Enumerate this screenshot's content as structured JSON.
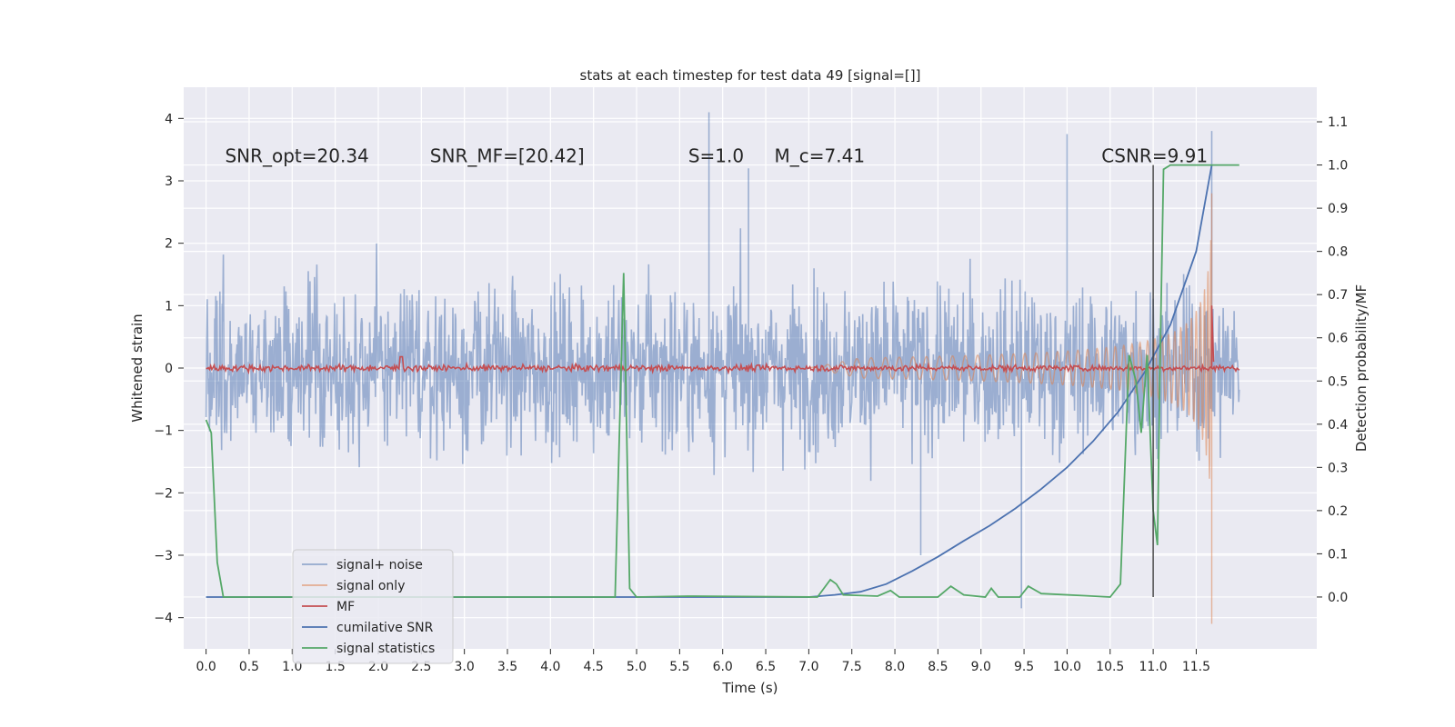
{
  "chart_data": {
    "type": "line",
    "title": "stats at each timestep for test data 49 [signal=[]]",
    "xlabel": "Time (s)",
    "ylabel": "Whitened strain",
    "y2label": "Detection probability/MF",
    "xlim": [
      -0.26,
      12.9
    ],
    "ylim": [
      -4.5,
      4.5
    ],
    "y2lim": [
      -0.12,
      1.18
    ],
    "x_ticks": [
      "0.0",
      "0.5",
      "1.0",
      "1.5",
      "2.0",
      "2.5",
      "3.0",
      "3.5",
      "4.0",
      "4.5",
      "5.0",
      "5.5",
      "6.0",
      "6.5",
      "7.0",
      "7.5",
      "8.0",
      "8.5",
      "9.0",
      "9.5",
      "10.0",
      "10.5",
      "11.0",
      "11.5"
    ],
    "y_ticks": [
      "4",
      "3",
      "2",
      "1",
      "0",
      "−1",
      "−2",
      "−3",
      "−4"
    ],
    "y2_ticks": [
      "1.1",
      "1.0",
      "0.9",
      "0.8",
      "0.7",
      "0.6",
      "0.5",
      "0.4",
      "0.3",
      "0.2",
      "0.1",
      "0.0"
    ],
    "grid": true,
    "legend_position": "lower-left",
    "annotations": [
      {
        "text": "SNR_opt=20.34",
        "x": 0.22,
        "y": 3.3
      },
      {
        "text": "SNR_MF=[20.42]",
        "x": 2.6,
        "y": 3.3
      },
      {
        "text": "S=1.0",
        "x": 5.6,
        "y": 3.3
      },
      {
        "text": "M_c=7.41",
        "x": 6.6,
        "y": 3.3
      },
      {
        "text": "CSNR=9.91",
        "x": 10.4,
        "y": 3.3
      }
    ],
    "series": [
      {
        "name": "signal+ noise",
        "color": "#4c72b0",
        "axis": "left",
        "style": "noise band",
        "x_range": [
          0.0,
          12.0
        ],
        "envelope": [
          -2.0,
          2.0
        ],
        "peaks": [
          [
            5.84,
            4.1
          ],
          [
            9.47,
            -3.85
          ],
          [
            11.68,
            3.8
          ],
          [
            10.0,
            3.75
          ],
          [
            6.3,
            3.2
          ],
          [
            8.3,
            -3.0
          ]
        ]
      },
      {
        "name": "signal only",
        "color": "#dd8452",
        "axis": "left",
        "style": "chirp",
        "x_range": [
          7.0,
          11.68
        ],
        "peak": [
          11.68,
          2.8
        ],
        "trough": [
          11.68,
          -4.1
        ]
      },
      {
        "name": "MF",
        "color": "#c44e52",
        "axis": "left",
        "style": "small noise around 0",
        "x_range": [
          0.0,
          12.0
        ],
        "spike": [
          11.68,
          1.0
        ]
      },
      {
        "name": "cumilative SNR",
        "color": "#4c72b0",
        "axis": "right",
        "x": [
          0.0,
          7.0,
          7.3,
          7.6,
          7.9,
          8.2,
          8.5,
          8.8,
          9.1,
          9.4,
          9.7,
          10.0,
          10.3,
          10.6,
          10.9,
          11.2,
          11.5,
          11.68
        ],
        "y": [
          0.0,
          0.0,
          0.005,
          0.012,
          0.03,
          0.06,
          0.093,
          0.13,
          0.165,
          0.205,
          0.25,
          0.3,
          0.36,
          0.43,
          0.52,
          0.63,
          0.8,
          1.0
        ]
      },
      {
        "name": "signal statistics",
        "color": "#55a868",
        "axis": "right",
        "x": [
          0.0,
          0.06,
          0.13,
          0.2,
          4.75,
          4.85,
          4.92,
          5.0,
          5.6,
          7.1,
          7.25,
          7.32,
          7.4,
          7.8,
          7.95,
          8.05,
          8.5,
          8.65,
          8.8,
          9.05,
          9.12,
          9.2,
          9.45,
          9.55,
          9.7,
          10.2,
          10.5,
          10.62,
          10.72,
          10.8,
          10.86,
          10.93,
          11.0,
          11.05,
          11.08,
          11.12,
          11.2,
          11.5,
          12.0
        ],
        "y": [
          0.41,
          0.38,
          0.08,
          0.0,
          0.0,
          0.75,
          0.02,
          0.0,
          0.002,
          0.0,
          0.04,
          0.03,
          0.005,
          0.002,
          0.015,
          0.0,
          0.0,
          0.025,
          0.005,
          0.0,
          0.02,
          0.0,
          0.0,
          0.025,
          0.008,
          0.003,
          0.0,
          0.03,
          0.56,
          0.5,
          0.38,
          0.56,
          0.2,
          0.12,
          0.55,
          0.99,
          1.0,
          1.0,
          1.0
        ]
      },
      {
        "name": "",
        "color": "#404040",
        "axis": "right",
        "style": "vertical marker",
        "x": [
          11.0,
          11.0
        ],
        "y": [
          0.0,
          1.0
        ]
      }
    ]
  }
}
